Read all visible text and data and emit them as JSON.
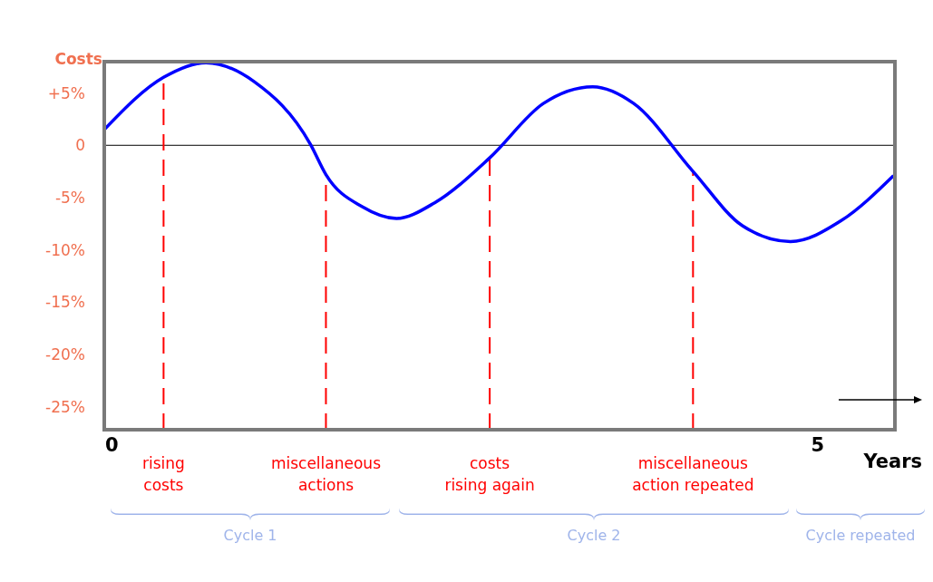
{
  "chart_data": {
    "type": "line",
    "xlabel": "Years",
    "ylabel": "Costs",
    "xlim": [
      -0.05,
      5.55
    ],
    "ylim": [
      -27.2,
      8
    ],
    "xticks": [
      0,
      5
    ],
    "yticks": [
      {
        "value": 5,
        "label": "+5%"
      },
      0,
      {
        "value": -5,
        "label": "-5%"
      },
      {
        "value": -10,
        "label": "-10%"
      },
      {
        "value": -15,
        "label": "-15%"
      },
      {
        "value": -20,
        "label": "-20%"
      },
      {
        "value": -25,
        "label": "-25%"
      }
    ],
    "grid": false,
    "marker": "none",
    "line_style": "solid",
    "series": [
      {
        "color": "#0000ff",
        "x": [
          -0.05,
          0.37,
          0.67,
          1.01,
          1.41,
          1.52,
          1.78,
          2.02,
          2.29,
          2.68,
          3.06,
          3.41,
          3.7,
          4.12,
          4.47,
          4.81,
          5.17,
          5.54
        ],
        "values": [
          1.5,
          6.5,
          7.9,
          6.1,
          0.1,
          -2.8,
          -5.9,
          -7,
          -5.5,
          -1.2,
          4,
          5.6,
          4,
          -2.5,
          -7.7,
          -9.2,
          -7.2,
          -2.9
        ]
      }
    ],
    "ref_lines": [
      {
        "axis": "y",
        "value": 0,
        "color": "#000000",
        "line_style": "solid"
      },
      {
        "axis": "x",
        "value": 0.37,
        "label": "rising costs",
        "color": "#ff0000",
        "line_style": "dashed"
      },
      {
        "axis": "x",
        "value": 1.52,
        "label": "miscellaneous actions",
        "color": "#ff0000",
        "line_style": "dashed"
      },
      {
        "axis": "x",
        "value": 2.68,
        "label": "costs rising again",
        "color": "#ff0000",
        "line_style": "dashed"
      },
      {
        "axis": "x",
        "value": 4.12,
        "label": "miscellaneous action repeated",
        "color": "#ff0000",
        "line_style": "dashed"
      }
    ],
    "annotations": [
      "Cycle 1",
      "Cycle 2",
      "Cycle repeated"
    ]
  }
}
